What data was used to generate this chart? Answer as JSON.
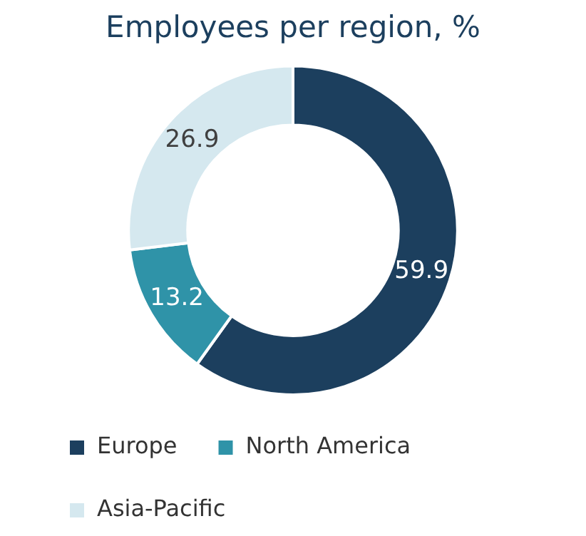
{
  "chart_data": {
    "type": "donut",
    "title": "Employees per region, %",
    "categories": [
      "Europe",
      "North America",
      "Asia-Pacific"
    ],
    "values": [
      59.9,
      13.2,
      26.9
    ],
    "colors": [
      "#1c3f5e",
      "#2f93a8",
      "#d5e8ef"
    ],
    "data_labels": true,
    "legend": "bottom"
  }
}
